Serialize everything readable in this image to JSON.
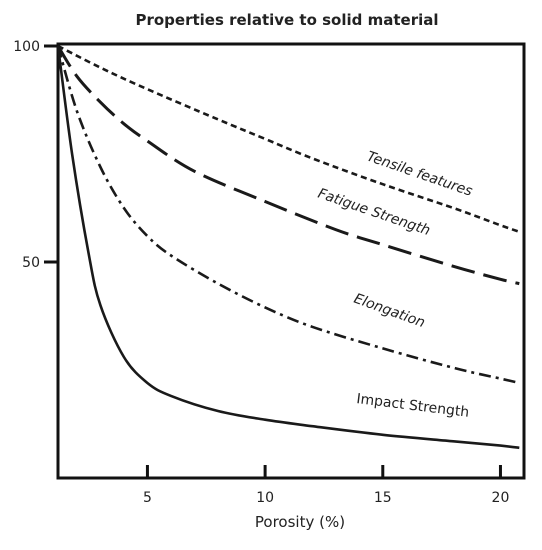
{
  "chart_data": {
    "type": "line",
    "title": "Properties relative to solid material",
    "xlabel": "Porosity (%)",
    "ylabel": "",
    "xlim": [
      1.2,
      21
    ],
    "ylim": [
      0,
      100
    ],
    "x_ticks": [
      5,
      10,
      15,
      20
    ],
    "y_ticks": [
      50,
      100
    ],
    "grid": false,
    "series": [
      {
        "name": "Tensile features",
        "dash": "short-dash",
        "label": "Tensile features",
        "x": [
          1.2,
          3,
          5,
          8,
          10,
          12,
          15,
          18,
          20,
          20.8
        ],
        "y": [
          100,
          95,
          90,
          83,
          78.5,
          74,
          68,
          62.5,
          58.5,
          57
        ]
      },
      {
        "name": "Fatigue Strength",
        "dash": "long-dash",
        "label": "Fatigue Strength",
        "x": [
          1.2,
          2,
          3,
          4,
          5,
          7,
          10,
          13,
          15,
          18,
          20,
          20.8
        ],
        "y": [
          100,
          93,
          87,
          82,
          78,
          71,
          64,
          57.5,
          54,
          49,
          46,
          45
        ]
      },
      {
        "name": "Elongation",
        "dash": "dash-dot",
        "label": "Elongation",
        "x": [
          1.2,
          2,
          3,
          4,
          5,
          6,
          8,
          10,
          12,
          15,
          18,
          20,
          20.8
        ],
        "y": [
          100,
          85,
          72,
          62.5,
          56,
          51.5,
          45,
          39.5,
          35,
          30,
          25.5,
          23,
          22
        ]
      },
      {
        "name": "Impact Strength",
        "dash": "solid",
        "label": "Impact Strength",
        "x": [
          1.2,
          1.8,
          2.5,
          3,
          4,
          5,
          6,
          8,
          10,
          12,
          15,
          18,
          20,
          20.8
        ],
        "y": [
          100,
          75,
          52,
          40,
          28,
          22,
          19,
          15.5,
          13.5,
          12,
          10,
          8.5,
          7.5,
          7
        ]
      }
    ]
  }
}
